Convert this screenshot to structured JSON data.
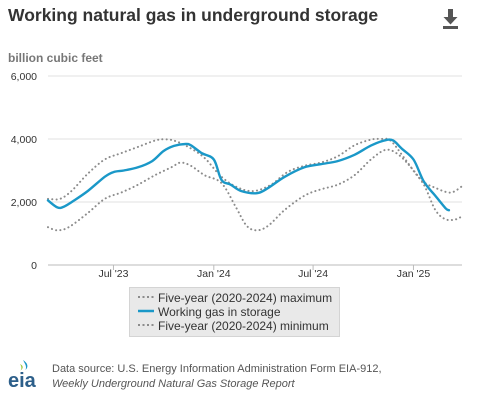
{
  "title": "Working natural gas in underground storage",
  "units_label": "billion cubic feet",
  "download_icon": "download-icon",
  "source": {
    "prefix": "Data source: U.S. Energy Information Administration Form EIA-912,",
    "report": "Weekly Underground Natural Gas Storage Report"
  },
  "logo": {
    "text": "eia",
    "icon": "eia-logo-icon"
  },
  "colors": {
    "working": "#1a98c8",
    "band": "#8c8c8c",
    "grid": "#e1e1e1",
    "axis": "#bbbbbb"
  },
  "chart_data": {
    "type": "line",
    "ylabel": "billion cubic feet",
    "ylim": [
      0,
      6000
    ],
    "yticks": [
      0,
      2000,
      4000,
      6000
    ],
    "ytick_labels": [
      "0",
      "2,000",
      "4,000",
      "6,000"
    ],
    "xlim": [
      "2023-03-03",
      "2025-03-31"
    ],
    "xticks": [
      {
        "date": "2023-07-01",
        "label": "Jul '23"
      },
      {
        "date": "2024-01-01",
        "label": "Jan '24"
      },
      {
        "date": "2024-07-01",
        "label": "Jul '24"
      },
      {
        "date": "2025-01-01",
        "label": "Jan '25"
      }
    ],
    "grid": true,
    "legend_position": "bottom",
    "series": [
      {
        "name": "Five-year (2020-2024) maximum",
        "style": "dotted",
        "points": [
          [
            "2023-03-03",
            2100
          ],
          [
            "2023-03-25",
            2100
          ],
          [
            "2023-04-15",
            2350
          ],
          [
            "2023-05-15",
            2900
          ],
          [
            "2023-06-15",
            3350
          ],
          [
            "2023-07-15",
            3550
          ],
          [
            "2023-08-15",
            3750
          ],
          [
            "2023-09-15",
            3950
          ],
          [
            "2023-10-01",
            3990
          ],
          [
            "2023-10-20",
            3950
          ],
          [
            "2023-11-15",
            3750
          ],
          [
            "2023-12-15",
            3400
          ],
          [
            "2024-01-15",
            2800
          ],
          [
            "2024-02-15",
            2450
          ],
          [
            "2024-03-15",
            2350
          ],
          [
            "2024-04-15",
            2550
          ],
          [
            "2024-05-15",
            2950
          ],
          [
            "2024-06-15",
            3150
          ],
          [
            "2024-07-15",
            3250
          ],
          [
            "2024-08-15",
            3450
          ],
          [
            "2024-09-15",
            3800
          ],
          [
            "2024-10-15",
            3980
          ],
          [
            "2024-11-01",
            4000
          ],
          [
            "2024-11-20",
            3950
          ],
          [
            "2024-12-15",
            3400
          ],
          [
            "2025-01-15",
            2700
          ],
          [
            "2025-02-10",
            2450
          ],
          [
            "2025-03-10",
            2300
          ],
          [
            "2025-03-31",
            2500
          ]
        ]
      },
      {
        "name": "Working gas in storage",
        "style": "solid",
        "points": [
          [
            "2023-03-03",
            2050
          ],
          [
            "2023-03-20",
            1830
          ],
          [
            "2023-04-01",
            1850
          ],
          [
            "2023-04-20",
            2050
          ],
          [
            "2023-05-15",
            2350
          ],
          [
            "2023-06-15",
            2800
          ],
          [
            "2023-07-01",
            2950
          ],
          [
            "2023-07-20",
            3000
          ],
          [
            "2023-08-15",
            3100
          ],
          [
            "2023-09-10",
            3300
          ],
          [
            "2023-10-01",
            3620
          ],
          [
            "2023-10-20",
            3780
          ],
          [
            "2023-11-10",
            3840
          ],
          [
            "2023-11-20",
            3800
          ],
          [
            "2023-12-10",
            3550
          ],
          [
            "2024-01-01",
            3350
          ],
          [
            "2024-01-15",
            2700
          ],
          [
            "2024-02-01",
            2550
          ],
          [
            "2024-02-20",
            2350
          ],
          [
            "2024-03-20",
            2280
          ],
          [
            "2024-04-10",
            2450
          ],
          [
            "2024-05-10",
            2800
          ],
          [
            "2024-06-15",
            3100
          ],
          [
            "2024-07-15",
            3200
          ],
          [
            "2024-08-15",
            3300
          ],
          [
            "2024-09-15",
            3500
          ],
          [
            "2024-10-15",
            3790
          ],
          [
            "2024-11-10",
            3960
          ],
          [
            "2024-11-25",
            3950
          ],
          [
            "2024-12-10",
            3700
          ],
          [
            "2025-01-01",
            3350
          ],
          [
            "2025-01-20",
            2650
          ],
          [
            "2025-02-10",
            2200
          ],
          [
            "2025-03-01",
            1800
          ],
          [
            "2025-03-07",
            1740
          ]
        ]
      },
      {
        "name": "Five-year (2020-2024) minimum",
        "style": "dotted",
        "points": [
          [
            "2023-03-03",
            1200
          ],
          [
            "2023-03-20",
            1100
          ],
          [
            "2023-04-10",
            1200
          ],
          [
            "2023-05-15",
            1650
          ],
          [
            "2023-06-15",
            2100
          ],
          [
            "2023-07-15",
            2300
          ],
          [
            "2023-08-15",
            2550
          ],
          [
            "2023-09-15",
            2850
          ],
          [
            "2023-10-15",
            3100
          ],
          [
            "2023-11-01",
            3250
          ],
          [
            "2023-11-20",
            3150
          ],
          [
            "2023-12-15",
            2850
          ],
          [
            "2024-01-15",
            2600
          ],
          [
            "2024-02-10",
            1850
          ],
          [
            "2024-03-01",
            1250
          ],
          [
            "2024-03-20",
            1100
          ],
          [
            "2024-04-10",
            1250
          ],
          [
            "2024-05-10",
            1750
          ],
          [
            "2024-06-15",
            2200
          ],
          [
            "2024-07-15",
            2400
          ],
          [
            "2024-08-15",
            2550
          ],
          [
            "2024-09-15",
            2850
          ],
          [
            "2024-10-15",
            3350
          ],
          [
            "2024-11-10",
            3650
          ],
          [
            "2024-12-01",
            3550
          ],
          [
            "2024-12-25",
            3150
          ],
          [
            "2025-01-20",
            2550
          ],
          [
            "2025-02-10",
            1750
          ],
          [
            "2025-03-01",
            1450
          ],
          [
            "2025-03-20",
            1450
          ],
          [
            "2025-03-31",
            1550
          ]
        ]
      }
    ]
  }
}
